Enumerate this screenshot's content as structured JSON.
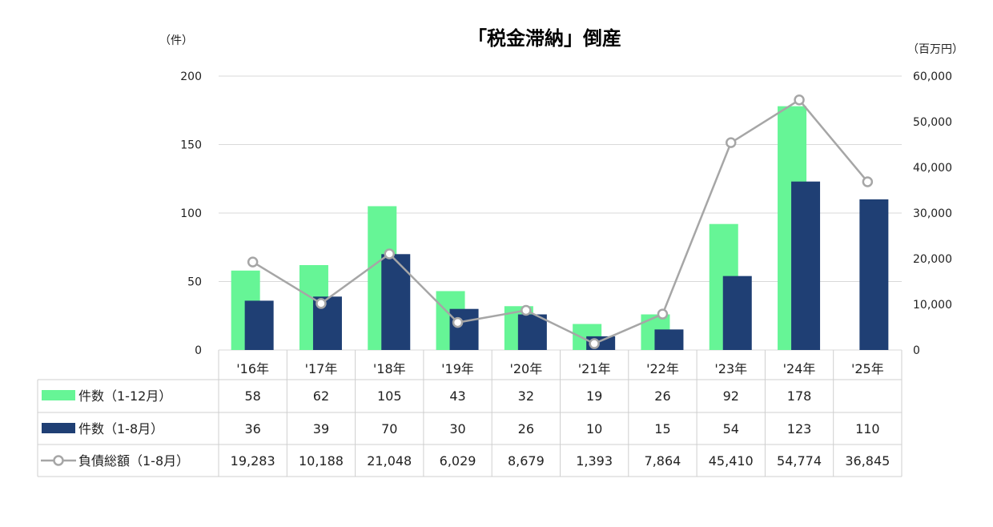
{
  "chart_data": {
    "type": "bar",
    "title": "「税金滞納」倒産",
    "y_left_unit": "（件）",
    "y_right_unit": "（百万円）",
    "categories": [
      "'16年",
      "'17年",
      "'18年",
      "'19年",
      "'20年",
      "'21年",
      "'22年",
      "'23年",
      "'24年",
      "'25年"
    ],
    "y_left_ticks": [
      "0",
      "50",
      "100",
      "150",
      "200"
    ],
    "y_right_ticks": [
      "0",
      "10,000",
      "20,000",
      "30,000",
      "40,000",
      "50,000",
      "60,000"
    ],
    "ylim_left": [
      0,
      200
    ],
    "ylim_right": [
      0,
      60000
    ],
    "grid": true,
    "series": [
      {
        "name": "件数（1-12月）",
        "type": "bar",
        "axis": "left",
        "color": "#66f596",
        "values": [
          58,
          62,
          105,
          43,
          32,
          19,
          26,
          92,
          178,
          null
        ],
        "labels": [
          "58",
          "62",
          "105",
          "43",
          "32",
          "19",
          "26",
          "92",
          "178",
          ""
        ]
      },
      {
        "name": "件数（1-8月）",
        "type": "bar",
        "axis": "left",
        "color": "#1f3f74",
        "values": [
          36,
          39,
          70,
          30,
          26,
          10,
          15,
          54,
          123,
          110
        ],
        "labels": [
          "36",
          "39",
          "70",
          "30",
          "26",
          "10",
          "15",
          "54",
          "123",
          "110"
        ]
      },
      {
        "name": "負債総額（1-8月）",
        "type": "line",
        "axis": "right",
        "color": "#a6a6a6",
        "values": [
          19283,
          10188,
          21048,
          6029,
          8679,
          1393,
          7864,
          45410,
          54774,
          36845
        ],
        "labels": [
          "19,283",
          "10,188",
          "21,048",
          "6,029",
          "8,679",
          "1,393",
          "7,864",
          "45,410",
          "54,774",
          "36,845"
        ]
      }
    ]
  }
}
